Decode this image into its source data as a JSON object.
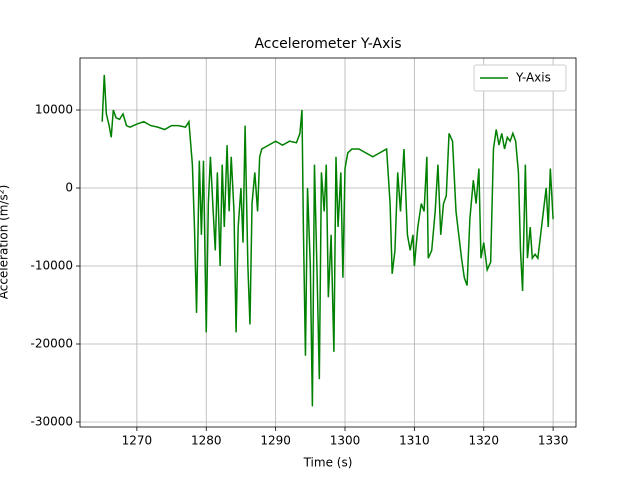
{
  "chart_data": {
    "type": "line",
    "title": "Accelerometer Y-Axis",
    "xlabel": "Time (s)",
    "ylabel": "Acceleration (m/s²)",
    "x": [
      1265,
      1265.3,
      1265.6,
      1266,
      1266.3,
      1266.6,
      1267,
      1267.5,
      1268,
      1268.5,
      1269,
      1270,
      1271,
      1272,
      1273,
      1274,
      1275,
      1276,
      1277,
      1277.5,
      1278,
      1278.3,
      1278.6,
      1279,
      1279.3,
      1279.6,
      1280,
      1280.3,
      1280.6,
      1281,
      1281.3,
      1281.6,
      1282,
      1282.3,
      1282.6,
      1283,
      1283.3,
      1283.6,
      1284,
      1284.3,
      1284.6,
      1285,
      1285.3,
      1285.6,
      1286,
      1286.3,
      1286.6,
      1287,
      1287.4,
      1287.7,
      1288,
      1289,
      1290,
      1291,
      1292,
      1293,
      1293.5,
      1293.8,
      1294,
      1294.3,
      1294.6,
      1295,
      1295.3,
      1295.6,
      1296,
      1296.3,
      1296.6,
      1297,
      1297.3,
      1297.6,
      1298,
      1298.4,
      1298.7,
      1299,
      1299.4,
      1299.7,
      1300,
      1300.4,
      1301,
      1302,
      1303,
      1304,
      1305,
      1306,
      1306.5,
      1306.8,
      1307.2,
      1307.6,
      1308,
      1308.5,
      1309,
      1309.4,
      1309.8,
      1310,
      1310.5,
      1311,
      1311.4,
      1311.8,
      1312,
      1312.5,
      1313,
      1313.4,
      1313.8,
      1314.2,
      1314.6,
      1315,
      1315.5,
      1316,
      1316.4,
      1316.8,
      1317.2,
      1317.6,
      1318,
      1318.5,
      1318.9,
      1319.3,
      1319.6,
      1320,
      1320.5,
      1321,
      1321.4,
      1321.8,
      1322.2,
      1322.6,
      1323,
      1323.4,
      1323.8,
      1324.2,
      1324.6,
      1325,
      1325.3,
      1325.6,
      1326,
      1326.3,
      1326.7,
      1327,
      1327.4,
      1327.8,
      1328.2,
      1328.6,
      1329,
      1329.3,
      1329.6,
      1330
    ],
    "series": [
      {
        "name": "Y-Axis",
        "color": "#008000",
        "values": [
          8500,
          14500,
          9500,
          8000,
          6500,
          10000,
          9000,
          8800,
          9500,
          8000,
          7800,
          8200,
          8500,
          8000,
          7800,
          7500,
          8000,
          8000,
          7800,
          8500,
          3000,
          -5000,
          -16000,
          3500,
          -6000,
          3500,
          -18500,
          -2000,
          4000,
          -3000,
          -8000,
          2000,
          -10000,
          3000,
          -5000,
          5500,
          -3000,
          4000,
          -3000,
          -18500,
          -5000,
          0,
          -7000,
          8000,
          -10000,
          -17500,
          -2000,
          2000,
          -3000,
          4000,
          5000,
          5500,
          6000,
          5500,
          6000,
          5800,
          7000,
          10000,
          -5000,
          -21500,
          0,
          -10000,
          -28000,
          3000,
          -12000,
          -24500,
          2000,
          -3000,
          3000,
          -14000,
          -6000,
          -21000,
          4000,
          -5000,
          2000,
          -11500,
          2500,
          4500,
          5000,
          5000,
          4500,
          4000,
          4500,
          5000,
          -2000,
          -11000,
          -8000,
          2000,
          -3000,
          5000,
          -6000,
          -8000,
          -6000,
          -10000,
          -5000,
          -2000,
          -3000,
          4000,
          -9000,
          -8000,
          -3000,
          3000,
          -6000,
          -2000,
          -1000,
          7000,
          6000,
          -3000,
          -6000,
          -9000,
          -11500,
          -12500,
          -4000,
          1000,
          -2000,
          2500,
          -9000,
          -7000,
          -10500,
          -9500,
          5000,
          7500,
          5500,
          7000,
          5000,
          6500,
          6000,
          7000,
          6000,
          2000,
          -8000,
          -13200,
          3000,
          -9000,
          -5000,
          -9000,
          -8500,
          -9000,
          -6000,
          -3000,
          0,
          -5000,
          2500,
          -4000
        ]
      }
    ],
    "xlim": [
      1261.8,
      1333.3
    ],
    "ylim": [
      -30640,
      16667
    ],
    "xticks": [
      1270,
      1280,
      1290,
      1300,
      1310,
      1320,
      1330
    ],
    "yticks": [
      -30000,
      -20000,
      -10000,
      0,
      10000
    ],
    "grid": true,
    "legend": "upper right"
  }
}
